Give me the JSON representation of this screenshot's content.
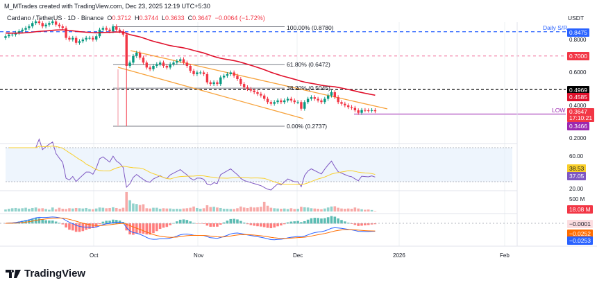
{
  "header": {
    "credit": "M_MTrades created with TradingView.com, Dec 23, 2025 12:19 UTC+5:30",
    "symbol": "Cardano / TetherUS · 1D · Binance",
    "o_label": "O",
    "o": "0.3712",
    "h_label": "H",
    "h": "0.3744",
    "l_label": "L",
    "l": "0.3633",
    "c_label": "C",
    "c": "0.3647",
    "change": "−0.0064 (−1.72%)"
  },
  "price_axis": {
    "currency": "USDT",
    "ticks": [
      "0.8000",
      "0.6000",
      "0.4000",
      "0.2000"
    ]
  },
  "badges": {
    "daily_sr": "0.8475",
    "red_level": "0.7000",
    "black_level": "0.4969",
    "ema": "0.4585",
    "last_price": "0.3647",
    "countdown": "17:10:21",
    "low": "0.3466"
  },
  "annotations": {
    "daily_sr": "Daily S/R",
    "low": "LOW",
    "fib100": "100.00% (0.8780)",
    "fib618": "61.80% (0.6472)",
    "fib382": "38.20% (0.5045)",
    "fib0": "0.00% (0.2737)"
  },
  "rsi_axis": {
    "t60": "60.00",
    "t20": "20.00",
    "rsi_ma": "38.53",
    "rsi": "37.05"
  },
  "volume_axis": {
    "t500": "500 M",
    "last": "18.08 M"
  },
  "macd_axis": {
    "hist": "−0.0001",
    "signal": "−0.0252",
    "macd": "−0.0253"
  },
  "x_axis": [
    "Oct",
    "Nov",
    "Dec",
    "2026",
    "Feb"
  ],
  "logo": "TradingView",
  "colors": {
    "up": "#089981",
    "down": "#f23645",
    "ema": "#e0102b",
    "channel": "#f7a23b",
    "sr": "#2962ff",
    "low": "#9c27b0"
  },
  "chart_data": {
    "type": "candlestick",
    "title": "Cardano / TetherUS · 1D · Binance",
    "start_date": "2025-09-04",
    "end_date": "2025-12-23",
    "ylim": [
      0.17,
      0.93
    ],
    "closes": [
      0.82,
      0.83,
      0.83,
      0.84,
      0.85,
      0.86,
      0.87,
      0.88,
      0.9,
      0.91,
      0.9,
      0.88,
      0.89,
      0.9,
      0.91,
      0.89,
      0.88,
      0.87,
      0.81,
      0.8,
      0.81,
      0.78,
      0.79,
      0.8,
      0.81,
      0.81,
      0.8,
      0.82,
      0.86,
      0.87,
      0.86,
      0.85,
      0.88,
      0.86,
      0.85,
      0.83,
      0.64,
      0.66,
      0.7,
      0.72,
      0.69,
      0.66,
      0.63,
      0.62,
      0.64,
      0.65,
      0.66,
      0.64,
      0.63,
      0.65,
      0.66,
      0.67,
      0.68,
      0.66,
      0.64,
      0.61,
      0.59,
      0.6,
      0.6,
      0.59,
      0.54,
      0.53,
      0.54,
      0.53,
      0.57,
      0.58,
      0.59,
      0.6,
      0.58,
      0.56,
      0.53,
      0.51,
      0.5,
      0.49,
      0.48,
      0.47,
      0.46,
      0.44,
      0.42,
      0.41,
      0.42,
      0.43,
      0.42,
      0.43,
      0.44,
      0.43,
      0.42,
      0.42,
      0.38,
      0.42,
      0.44,
      0.45,
      0.44,
      0.43,
      0.42,
      0.44,
      0.46,
      0.48,
      0.45,
      0.42,
      0.41,
      0.4,
      0.39,
      0.385,
      0.37,
      0.355,
      0.372,
      0.37,
      0.368,
      0.3712,
      0.3647
    ],
    "volumes_m": [
      80,
      110,
      130,
      140,
      120,
      130,
      150,
      110,
      140,
      160,
      120,
      130,
      100,
      70,
      160,
      90,
      150,
      110,
      100,
      130,
      120,
      140,
      130,
      120,
      140,
      100,
      90,
      120,
      160,
      150,
      130,
      140,
      170,
      140,
      110,
      150,
      780,
      450,
      320,
      300,
      260,
      290,
      130,
      120,
      150,
      150,
      110,
      130,
      120,
      120,
      100,
      110,
      100,
      120,
      130,
      150,
      200,
      140,
      110,
      130,
      250,
      180,
      190,
      160,
      140,
      110,
      110,
      100,
      100,
      130,
      200,
      160,
      140,
      180,
      160,
      170,
      190,
      390,
      230,
      150,
      130,
      120,
      110,
      120,
      100,
      130,
      100,
      110,
      190,
      170,
      160,
      130,
      120,
      110,
      90,
      120,
      160,
      200,
      210,
      150,
      120,
      110,
      120,
      110,
      160,
      120,
      90,
      70,
      80,
      60,
      18.08
    ],
    "crash_low": 0.2737,
    "levels": {
      "daily_sr": 0.8475,
      "red": 0.7,
      "black": 0.4969,
      "low": 0.3466,
      "fib": [
        0.878,
        0.6472,
        0.5045,
        0.2737
      ]
    },
    "indicators": [
      "EMA 50",
      "RSI 14 with MA",
      "Volume",
      "MACD 12 26 9"
    ]
  }
}
